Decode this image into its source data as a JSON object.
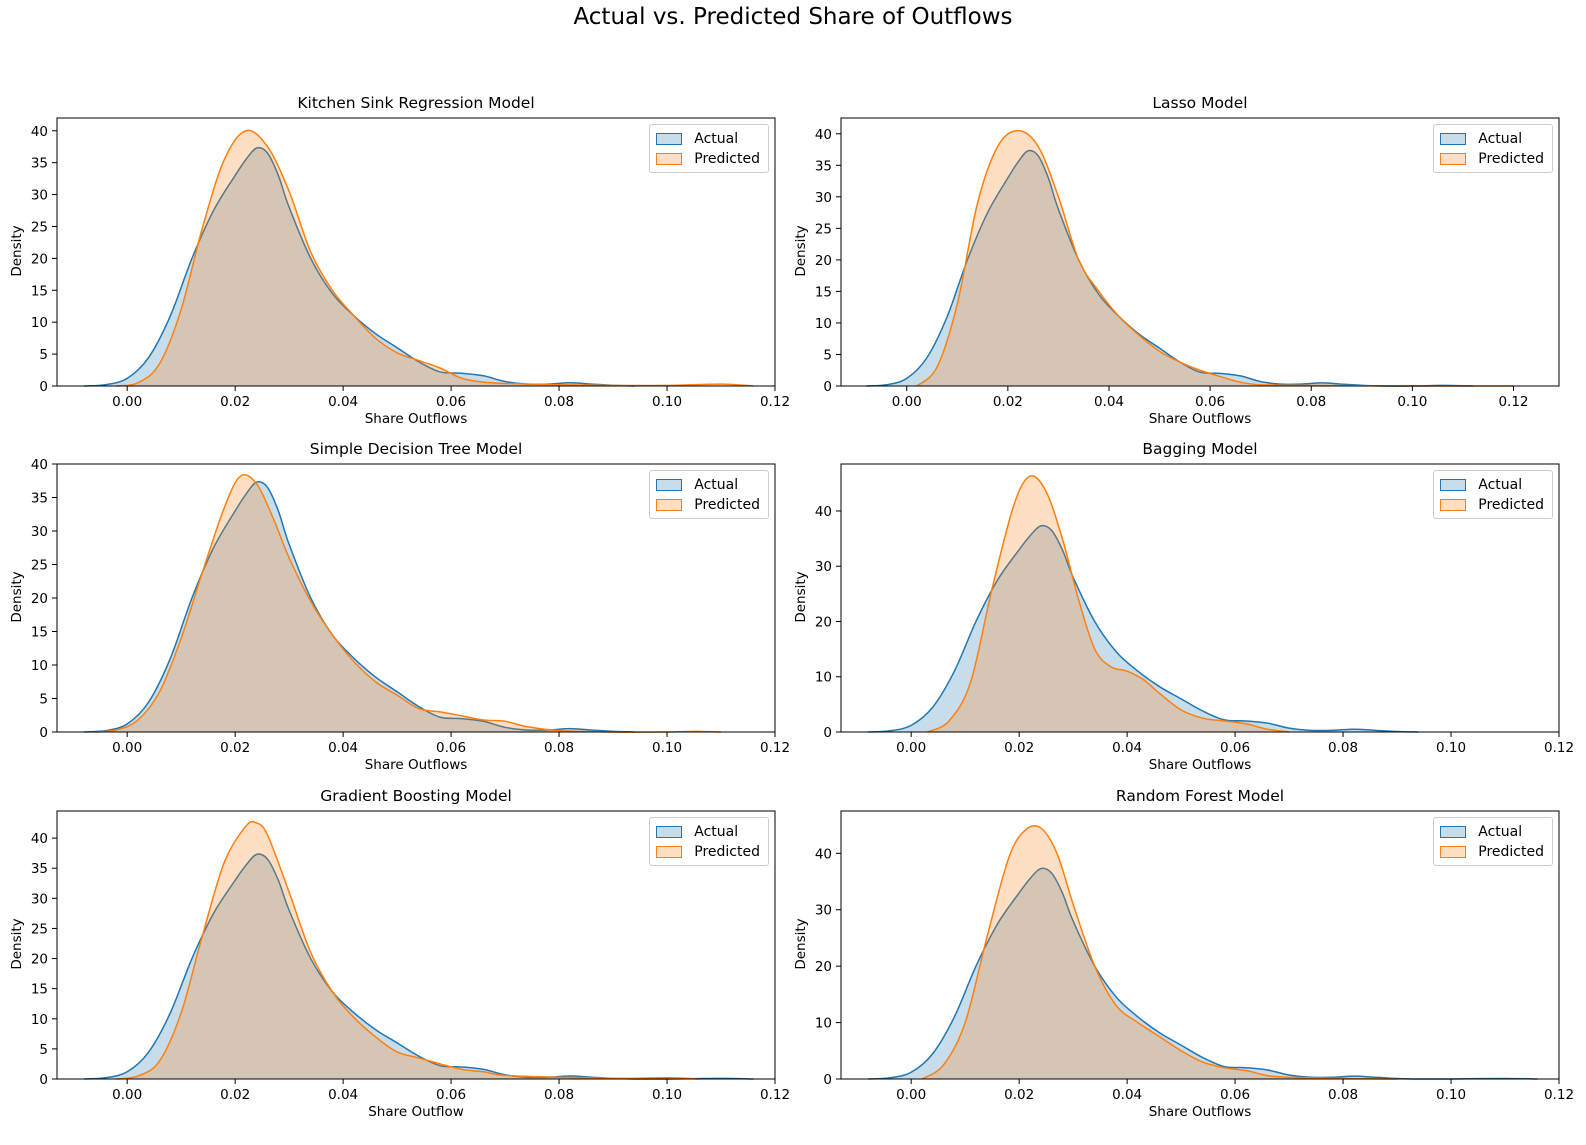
{
  "figure_title": "Actual vs. Predicted Share of Outflows",
  "colors": {
    "actual": "#1f77b4",
    "predicted": "#ff7f0e",
    "actual_fill": "rgba(31,119,180,0.25)",
    "predicted_fill": "rgba(255,127,14,0.25)"
  },
  "chart_data": [
    {
      "type": "area",
      "title": "Kitchen Sink Regression Model",
      "xlabel": "Share Outflows",
      "ylabel": "Density",
      "xlim": [
        -0.013,
        0.12
      ],
      "ylim": [
        0,
        42
      ],
      "xticks": [
        0.0,
        0.02,
        0.04,
        0.06,
        0.08,
        0.1,
        0.12
      ],
      "xtick_labels": [
        "0.00",
        "0.02",
        "0.04",
        "0.06",
        "0.08",
        "0.10",
        "0.12"
      ],
      "yticks": [
        0,
        5,
        10,
        15,
        20,
        25,
        30,
        35,
        40
      ],
      "legend": {
        "position": "top-right",
        "entries": [
          "Actual",
          "Predicted"
        ]
      },
      "series": [
        {
          "name": "Actual",
          "x": [
            -0.008,
            -0.004,
            0,
            0.004,
            0.008,
            0.012,
            0.016,
            0.02,
            0.022,
            0.024,
            0.026,
            0.028,
            0.03,
            0.034,
            0.038,
            0.042,
            0.046,
            0.05,
            0.054,
            0.058,
            0.062,
            0.066,
            0.07,
            0.074,
            0.078,
            0.082,
            0.086,
            0.09,
            0.094
          ],
          "y": [
            0,
            0.2,
            1.2,
            4.5,
            11,
            20,
            27.5,
            33,
            35.5,
            37.3,
            36.5,
            33,
            28,
            20,
            14.5,
            11,
            8.2,
            6,
            3.8,
            2.2,
            2,
            1.6,
            0.7,
            0.3,
            0.3,
            0.5,
            0.3,
            0.1,
            0
          ]
        },
        {
          "name": "Predicted",
          "x": [
            -0.002,
            0.002,
            0.006,
            0.01,
            0.014,
            0.018,
            0.022,
            0.026,
            0.03,
            0.034,
            0.038,
            0.042,
            0.046,
            0.05,
            0.054,
            0.058,
            0.062,
            0.066,
            0.07,
            0.08,
            0.09,
            0.1,
            0.11,
            0.116
          ],
          "y": [
            0,
            0.5,
            3.5,
            12,
            25,
            35.5,
            40,
            37.5,
            30.5,
            21,
            15,
            11,
            7.5,
            5.2,
            4,
            2.8,
            1.2,
            0.6,
            0.4,
            0.2,
            0.1,
            0.1,
            0.3,
            0
          ]
        }
      ]
    },
    {
      "type": "area",
      "title": "Lasso Model",
      "xlabel": "Share Outflows",
      "ylabel": "Density",
      "xlim": [
        -0.013,
        0.129
      ],
      "ylim": [
        0,
        42.5
      ],
      "xticks": [
        0.0,
        0.02,
        0.04,
        0.06,
        0.08,
        0.1,
        0.12
      ],
      "xtick_labels": [
        "0.00",
        "0.02",
        "0.04",
        "0.06",
        "0.08",
        "0.10",
        "0.12"
      ],
      "yticks": [
        0,
        5,
        10,
        15,
        20,
        25,
        30,
        35,
        40
      ],
      "legend": {
        "position": "top-right",
        "entries": [
          "Actual",
          "Predicted"
        ]
      },
      "series": [
        {
          "name": "Actual",
          "x": [
            -0.008,
            -0.004,
            0,
            0.004,
            0.008,
            0.012,
            0.016,
            0.02,
            0.022,
            0.024,
            0.026,
            0.028,
            0.03,
            0.034,
            0.038,
            0.042,
            0.046,
            0.05,
            0.054,
            0.058,
            0.062,
            0.066,
            0.07,
            0.074,
            0.078,
            0.082,
            0.086,
            0.09,
            0.094,
            0.1,
            0.106,
            0.112
          ],
          "y": [
            0,
            0.2,
            1.2,
            4.5,
            11,
            20,
            27.5,
            33,
            35.5,
            37.3,
            36.5,
            33,
            28,
            20,
            14.5,
            11,
            8.2,
            6,
            3.8,
            2.2,
            2,
            1.6,
            0.7,
            0.3,
            0.3,
            0.5,
            0.3,
            0.1,
            0,
            0,
            0.1,
            0
          ]
        },
        {
          "name": "Predicted",
          "x": [
            0.002,
            0.006,
            0.01,
            0.014,
            0.018,
            0.022,
            0.026,
            0.03,
            0.034,
            0.038,
            0.042,
            0.046,
            0.05,
            0.054,
            0.058,
            0.062,
            0.066,
            0.07,
            0.08,
            0.1,
            0.12
          ],
          "y": [
            0,
            3,
            13,
            29,
            38,
            40.5,
            38,
            30,
            20,
            15,
            11,
            8,
            5.5,
            3.8,
            2.5,
            1.5,
            0.6,
            0.2,
            0.1,
            0,
            0
          ]
        }
      ]
    },
    {
      "type": "area",
      "title": "Simple Decision Tree Model",
      "xlabel": "Share Outflows",
      "ylabel": "Density",
      "xlim": [
        -0.013,
        0.12
      ],
      "ylim": [
        0,
        40
      ],
      "xticks": [
        0.0,
        0.02,
        0.04,
        0.06,
        0.08,
        0.1,
        0.12
      ],
      "xtick_labels": [
        "0.00",
        "0.02",
        "0.04",
        "0.06",
        "0.08",
        "0.10",
        "0.12"
      ],
      "yticks": [
        0,
        5,
        10,
        15,
        20,
        25,
        30,
        35,
        40
      ],
      "legend": {
        "position": "top-right",
        "entries": [
          "Actual",
          "Predicted"
        ]
      },
      "series": [
        {
          "name": "Actual",
          "x": [
            -0.008,
            -0.004,
            0,
            0.004,
            0.008,
            0.012,
            0.016,
            0.02,
            0.022,
            0.024,
            0.026,
            0.028,
            0.03,
            0.034,
            0.038,
            0.042,
            0.046,
            0.05,
            0.054,
            0.058,
            0.062,
            0.066,
            0.07,
            0.074,
            0.078,
            0.082,
            0.086,
            0.09,
            0.094
          ],
          "y": [
            0,
            0.2,
            1.2,
            4.5,
            11,
            20,
            27.5,
            33,
            35.5,
            37.3,
            36.5,
            33,
            28,
            20,
            14.5,
            11,
            8.2,
            6,
            3.8,
            2.2,
            2,
            1.6,
            0.7,
            0.3,
            0.3,
            0.5,
            0.3,
            0.1,
            0
          ]
        },
        {
          "name": "Predicted",
          "x": [
            -0.006,
            -0.002,
            0.002,
            0.006,
            0.01,
            0.014,
            0.018,
            0.021,
            0.024,
            0.027,
            0.03,
            0.034,
            0.038,
            0.042,
            0.046,
            0.05,
            0.054,
            0.058,
            0.062,
            0.066,
            0.07,
            0.074,
            0.08,
            0.09,
            0.1,
            0.105,
            0.11
          ],
          "y": [
            0,
            0.3,
            1.8,
            6,
            14,
            24,
            33.5,
            38.2,
            37,
            32,
            26,
            19.5,
            14.5,
            10.5,
            7.5,
            5.5,
            3.5,
            3,
            2.4,
            1.8,
            1.6,
            0.8,
            0.2,
            0,
            0,
            0.1,
            0
          ]
        }
      ]
    },
    {
      "type": "area",
      "title": "Bagging Model",
      "xlabel": "Share Outflows",
      "ylabel": "Density",
      "xlim": [
        -0.013,
        0.12
      ],
      "ylim": [
        0,
        48.5
      ],
      "xticks": [
        0.0,
        0.02,
        0.04,
        0.06,
        0.08,
        0.1,
        0.12
      ],
      "xtick_labels": [
        "0.00",
        "0.02",
        "0.04",
        "0.06",
        "0.08",
        "0.10",
        "0.12"
      ],
      "yticks": [
        0,
        10,
        20,
        30,
        40
      ],
      "legend": {
        "position": "top-right",
        "entries": [
          "Actual",
          "Predicted"
        ]
      },
      "series": [
        {
          "name": "Actual",
          "x": [
            -0.008,
            -0.004,
            0,
            0.004,
            0.008,
            0.012,
            0.016,
            0.02,
            0.022,
            0.024,
            0.026,
            0.028,
            0.03,
            0.034,
            0.038,
            0.042,
            0.046,
            0.05,
            0.054,
            0.058,
            0.062,
            0.066,
            0.07,
            0.074,
            0.078,
            0.082,
            0.086,
            0.09,
            0.094
          ],
          "y": [
            0,
            0.2,
            1.2,
            4.5,
            11,
            20,
            27.5,
            33,
            35.5,
            37.3,
            36.5,
            33,
            28,
            20,
            14.5,
            11,
            8.2,
            6,
            3.8,
            2.2,
            2,
            1.6,
            0.7,
            0.3,
            0.3,
            0.5,
            0.3,
            0.1,
            0
          ]
        },
        {
          "name": "Predicted",
          "x": [
            0.003,
            0.007,
            0.011,
            0.015,
            0.019,
            0.022,
            0.025,
            0.028,
            0.031,
            0.034,
            0.037,
            0.04,
            0.043,
            0.046,
            0.05,
            0.054,
            0.058,
            0.062,
            0.066,
            0.07
          ],
          "y": [
            0,
            2,
            9,
            26,
            41,
            46.3,
            43.5,
            35,
            24,
            15,
            11.8,
            11,
            9.5,
            7,
            4,
            2.5,
            2,
            1.5,
            0.5,
            0
          ]
        }
      ]
    },
    {
      "type": "area",
      "title": "Gradient Boosting Model",
      "xlabel": "Share Outflow",
      "ylabel": "Density",
      "xlim": [
        -0.013,
        0.12
      ],
      "ylim": [
        0,
        44.5
      ],
      "xticks": [
        0.0,
        0.02,
        0.04,
        0.06,
        0.08,
        0.1,
        0.12
      ],
      "xtick_labels": [
        "0.00",
        "0.02",
        "0.04",
        "0.06",
        "0.08",
        "0.10",
        "0.12"
      ],
      "yticks": [
        0,
        5,
        10,
        15,
        20,
        25,
        30,
        35,
        40
      ],
      "legend": {
        "position": "top-right",
        "entries": [
          "Actual",
          "Predicted"
        ]
      },
      "series": [
        {
          "name": "Actual",
          "x": [
            -0.008,
            -0.004,
            0,
            0.004,
            0.008,
            0.012,
            0.016,
            0.02,
            0.022,
            0.024,
            0.026,
            0.028,
            0.03,
            0.034,
            0.038,
            0.042,
            0.046,
            0.05,
            0.054,
            0.058,
            0.062,
            0.066,
            0.07,
            0.074,
            0.078,
            0.082,
            0.086,
            0.09,
            0.094,
            0.1,
            0.11,
            0.116
          ],
          "y": [
            0,
            0.2,
            1.2,
            4.5,
            11,
            20,
            27.5,
            33,
            35.5,
            37.3,
            36.5,
            33,
            28,
            20,
            14.5,
            11,
            8.2,
            6,
            3.8,
            2.2,
            2,
            1.6,
            0.7,
            0.3,
            0.3,
            0.5,
            0.3,
            0.1,
            0,
            0,
            0.1,
            0
          ]
        },
        {
          "name": "Predicted",
          "x": [
            -0.002,
            0.002,
            0.006,
            0.01,
            0.014,
            0.018,
            0.022,
            0.024,
            0.026,
            0.03,
            0.034,
            0.038,
            0.042,
            0.046,
            0.05,
            0.054,
            0.058,
            0.062,
            0.066,
            0.07,
            0.08,
            0.09,
            0.1,
            0.106
          ],
          "y": [
            0,
            0.5,
            3,
            11,
            24,
            36,
            42,
            42.5,
            40.5,
            31,
            21,
            14.5,
            10.2,
            7,
            4.5,
            3.5,
            2.5,
            1.6,
            1.2,
            0.6,
            0.3,
            0.1,
            0.2,
            0
          ]
        }
      ]
    },
    {
      "type": "area",
      "title": "Random Forest Model",
      "xlabel": "Share Outflows",
      "ylabel": "Density",
      "xlim": [
        -0.013,
        0.12
      ],
      "ylim": [
        0,
        47.5
      ],
      "xticks": [
        0.0,
        0.02,
        0.04,
        0.06,
        0.08,
        0.1,
        0.12
      ],
      "xtick_labels": [
        "0.00",
        "0.02",
        "0.04",
        "0.06",
        "0.08",
        "0.10",
        "0.12"
      ],
      "yticks": [
        0,
        10,
        20,
        30,
        40
      ],
      "legend": {
        "position": "top-right",
        "entries": [
          "Actual",
          "Predicted"
        ]
      },
      "series": [
        {
          "name": "Actual",
          "x": [
            -0.008,
            -0.004,
            0,
            0.004,
            0.008,
            0.012,
            0.016,
            0.02,
            0.022,
            0.024,
            0.026,
            0.028,
            0.03,
            0.034,
            0.038,
            0.042,
            0.046,
            0.05,
            0.054,
            0.058,
            0.062,
            0.066,
            0.07,
            0.074,
            0.078,
            0.082,
            0.086,
            0.09,
            0.094,
            0.1,
            0.11,
            0.116
          ],
          "y": [
            0,
            0.2,
            1.2,
            4.5,
            11,
            20,
            27.5,
            33,
            35.5,
            37.3,
            36.5,
            33,
            28,
            20,
            14.5,
            11,
            8.2,
            6,
            3.8,
            2.2,
            2,
            1.6,
            0.7,
            0.3,
            0.3,
            0.5,
            0.3,
            0.1,
            0,
            0,
            0.1,
            0
          ]
        },
        {
          "name": "Predicted",
          "x": [
            0.002,
            0.006,
            0.01,
            0.014,
            0.018,
            0.021,
            0.024,
            0.027,
            0.03,
            0.034,
            0.038,
            0.042,
            0.046,
            0.05,
            0.054,
            0.058,
            0.062,
            0.066,
            0.07,
            0.074,
            0.08,
            0.09
          ],
          "y": [
            0,
            2.5,
            10,
            25,
            39,
            44,
            44.5,
            40,
            31,
            20,
            13,
            10,
            7.5,
            5,
            3,
            2,
            1.5,
            0.6,
            0.3,
            0.2,
            0.1,
            0
          ]
        }
      ]
    }
  ]
}
